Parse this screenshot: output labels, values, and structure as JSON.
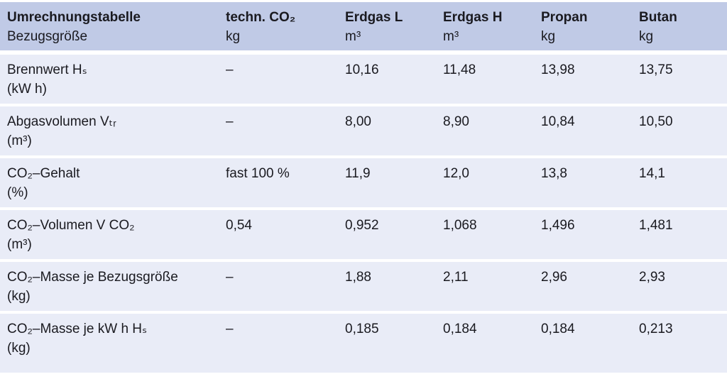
{
  "colors": {
    "header_bg": "#c0cae6",
    "row_bg": "#e9ecf7",
    "text": "#1a1a20",
    "page_bg": "#ffffff"
  },
  "chart_data": {
    "type": "table",
    "title": "Umrechnungstabelle",
    "row_header": {
      "title": "Umrechnungstabelle",
      "subtitle": "Bezugsgröße"
    },
    "columns": [
      {
        "label": "techn. CO₂",
        "unit": "kg"
      },
      {
        "label": "Erdgas L",
        "unit": "m³"
      },
      {
        "label": "Erdgas H",
        "unit": "m³"
      },
      {
        "label": "Propan",
        "unit": "kg"
      },
      {
        "label": "Butan",
        "unit": "kg"
      }
    ],
    "rows": [
      {
        "label": "Brennwert Hₛ",
        "unit": "(kW h)",
        "values": [
          "–",
          "10,16",
          "11,48",
          "13,98",
          "13,75"
        ]
      },
      {
        "label": "Abgasvolumen Vₜᵣ",
        "unit": "(m³)",
        "values": [
          "–",
          "8,00",
          "8,90",
          "10,84",
          "10,50"
        ]
      },
      {
        "label": "CO₂–Gehalt",
        "unit": "(%)",
        "values": [
          "fast 100 %",
          "11,9",
          "12,0",
          "13,8",
          "14,1"
        ]
      },
      {
        "label": "CO₂–Volumen V CO₂",
        "unit": "(m³)",
        "values": [
          "0,54",
          "0,952",
          "1,068",
          "1,496",
          "1,481"
        ]
      },
      {
        "label": "CO₂–Masse je Bezugsgröße",
        "unit": "(kg)",
        "values": [
          "–",
          "1,88",
          "2,11",
          "2,96",
          "2,93"
        ]
      },
      {
        "label": "CO₂–Masse je kW h Hₛ",
        "unit": "(kg)",
        "values": [
          "–",
          "0,185",
          "0,184",
          "0,184",
          "0,213"
        ]
      }
    ]
  }
}
